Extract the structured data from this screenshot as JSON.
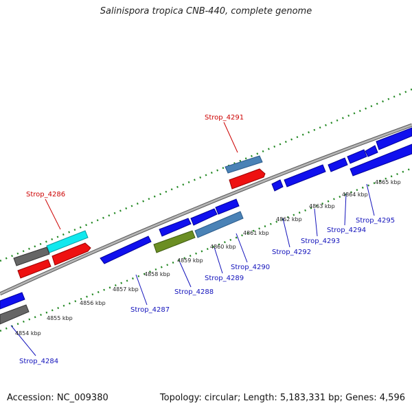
{
  "title": "Salinispora tropica CNB-440, complete genome",
  "footer": {
    "accession": "Accession: NC_009380",
    "summary": "Topology: circular; Length: 5,183,331 bp; Genes: 4,596"
  },
  "colors": {
    "backbone": "#9a9a9a",
    "tick": "#228822",
    "label_red": "#cc0000",
    "label_blue": "#1111bb"
  },
  "ticks": [
    "4854 kbp",
    "4855 kbp",
    "4856 kbp",
    "4857 kbp",
    "4858 kbp",
    "4859 kbp",
    "4860 kbp",
    "4861 kbp",
    "4862 kbp",
    "4863 kbp",
    "4864 kbp",
    "4865 kbp"
  ],
  "gene_labels": [
    {
      "name": "Strop_4291",
      "color": "red"
    },
    {
      "name": "Strop_4286",
      "color": "red"
    },
    {
      "name": "Strop_4295",
      "color": "blue"
    },
    {
      "name": "Strop_4294",
      "color": "blue"
    },
    {
      "name": "Strop_4293",
      "color": "blue"
    },
    {
      "name": "Strop_4292",
      "color": "blue"
    },
    {
      "name": "Strop_4290",
      "color": "blue"
    },
    {
      "name": "Strop_4289",
      "color": "blue"
    },
    {
      "name": "Strop_4288",
      "color": "blue"
    },
    {
      "name": "Strop_4287",
      "color": "blue"
    },
    {
      "name": "Strop_4284",
      "color": "blue"
    }
  ]
}
